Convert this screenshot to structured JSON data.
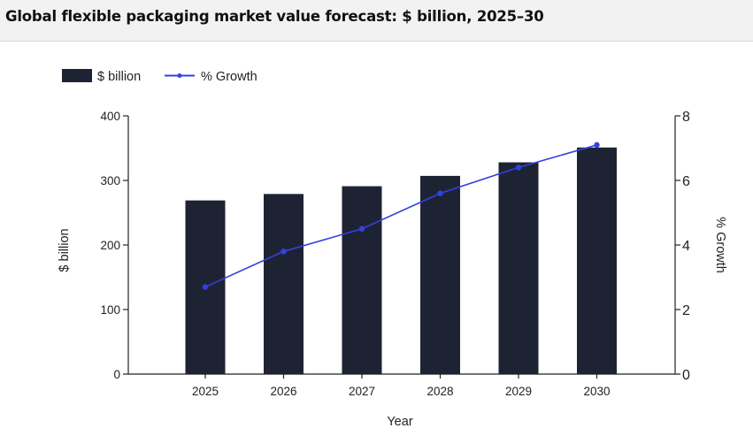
{
  "header": {
    "title": "Global flexible packaging market value forecast: $ billion, 2025–30"
  },
  "chart_data": {
    "type": "bar",
    "categories": [
      "2025",
      "2026",
      "2027",
      "2028",
      "2029",
      "2030"
    ],
    "series": [
      {
        "name": "$ billion",
        "kind": "bar",
        "axis": "left",
        "color": "#1e2333",
        "values": [
          269,
          279,
          291,
          307,
          328,
          351
        ]
      },
      {
        "name": "% Growth",
        "kind": "line",
        "axis": "right",
        "color": "#3341e0",
        "values": [
          2.7,
          3.8,
          4.5,
          5.6,
          6.4,
          7.1
        ]
      }
    ],
    "xlabel": "Year",
    "ylabel": "$ billion",
    "y2label": "% Growth",
    "ylim": [
      0,
      400
    ],
    "y2lim": [
      0,
      8
    ],
    "yticks": [
      "0",
      "100",
      "200",
      "300",
      "400"
    ],
    "y2ticks": [
      "0",
      "2",
      "4",
      "6",
      "8"
    ],
    "legend": "top-left",
    "grid": false
  }
}
